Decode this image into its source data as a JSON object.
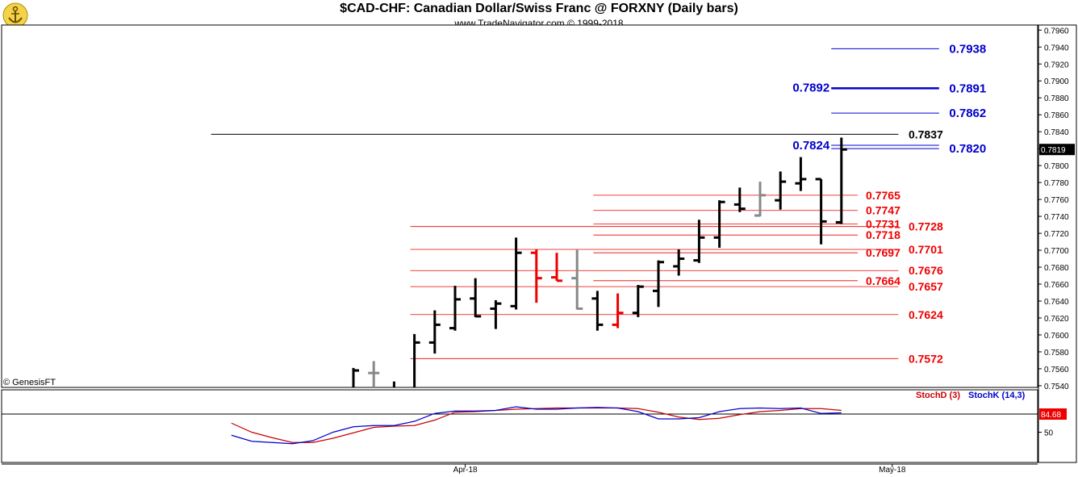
{
  "header": {
    "title": "$CAD-CHF:  Canadian Dollar/Swiss Franc @ FORXNY  (Daily bars)",
    "subtitle": "www.TradeNavigator.com © 1999-2018"
  },
  "credit": "© GenesisFT",
  "colors": {
    "bar_up": "#000000",
    "bar_down": "#ee0000",
    "bar_neutral": "#888888",
    "blue_level": "#0000cc",
    "red_level": "#ee0000",
    "stoch_d": "#cc0000",
    "stoch_k": "#0000cc"
  },
  "chart_data": [
    {
      "type": "bar",
      "title": "$CAD-CHF:  Canadian Dollar/Swiss Franc @ FORXNY  (Daily bars)",
      "ylim": [
        0.7538,
        0.7966
      ],
      "y_ticks": [
        "0.7540",
        "0.7560",
        "0.7580",
        "0.7600",
        "0.7620",
        "0.7640",
        "0.7660",
        "0.7680",
        "0.7700",
        "0.7720",
        "0.7740",
        "0.7760",
        "0.7780",
        "0.7800",
        "0.7820",
        "0.7840",
        "0.7860",
        "0.7880",
        "0.7900",
        "0.7920",
        "0.7940",
        "0.7960"
      ],
      "x_labels": [
        {
          "label": "Apr-18",
          "x": 5.5
        },
        {
          "label": "May-18",
          "x": 26.5
        }
      ],
      "x_range": [
        -7,
        42.5
      ],
      "last_price_label": "0.7819",
      "ohlc": [
        {
          "x": 0,
          "h": 0.7561,
          "l": 0.7538,
          "o": 0.7538,
          "c": 0.7558,
          "color": "black"
        },
        {
          "x": 1,
          "h": 0.7569,
          "l": 0.7538,
          "o": 0.7555,
          "c": 0.7555,
          "color": "gray"
        },
        {
          "x": 2,
          "h": 0.7545,
          "l": 0.7538,
          "o": 0.7538,
          "c": 0.7538,
          "color": "black"
        },
        {
          "x": 3,
          "h": 0.7601,
          "l": 0.7538,
          "o": 0.7538,
          "c": 0.7591,
          "color": "black"
        },
        {
          "x": 4,
          "h": 0.7629,
          "l": 0.7578,
          "o": 0.7591,
          "c": 0.7612,
          "color": "black"
        },
        {
          "x": 5,
          "h": 0.7658,
          "l": 0.7605,
          "o": 0.7608,
          "c": 0.7642,
          "color": "black"
        },
        {
          "x": 6,
          "h": 0.7667,
          "l": 0.7621,
          "o": 0.7643,
          "c": 0.7622,
          "color": "black"
        },
        {
          "x": 7,
          "h": 0.7641,
          "l": 0.7607,
          "o": 0.7631,
          "c": 0.7637,
          "color": "black"
        },
        {
          "x": 8,
          "h": 0.7715,
          "l": 0.763,
          "o": 0.7634,
          "c": 0.7697,
          "color": "black"
        },
        {
          "x": 9,
          "h": 0.7701,
          "l": 0.7638,
          "o": 0.7697,
          "c": 0.7667,
          "color": "red"
        },
        {
          "x": 10,
          "h": 0.7697,
          "l": 0.7664,
          "o": 0.7668,
          "c": 0.7664,
          "color": "red"
        },
        {
          "x": 11,
          "h": 0.7701,
          "l": 0.763,
          "o": 0.7667,
          "c": 0.7631,
          "color": "gray"
        },
        {
          "x": 12,
          "h": 0.7652,
          "l": 0.7605,
          "o": 0.7643,
          "c": 0.7612,
          "color": "black"
        },
        {
          "x": 13,
          "h": 0.7649,
          "l": 0.7608,
          "o": 0.7612,
          "c": 0.7626,
          "color": "red"
        },
        {
          "x": 14,
          "h": 0.7659,
          "l": 0.7621,
          "o": 0.7626,
          "c": 0.7657,
          "color": "black"
        },
        {
          "x": 15,
          "h": 0.7688,
          "l": 0.7633,
          "o": 0.7652,
          "c": 0.7686,
          "color": "black"
        },
        {
          "x": 16,
          "h": 0.7701,
          "l": 0.767,
          "o": 0.7681,
          "c": 0.769,
          "color": "black"
        },
        {
          "x": 17,
          "h": 0.7736,
          "l": 0.7685,
          "o": 0.7688,
          "c": 0.7715,
          "color": "black"
        },
        {
          "x": 18,
          "h": 0.7759,
          "l": 0.7703,
          "o": 0.7715,
          "c": 0.7757,
          "color": "black"
        },
        {
          "x": 19,
          "h": 0.7774,
          "l": 0.7745,
          "o": 0.7754,
          "c": 0.7749,
          "color": "black"
        },
        {
          "x": 20,
          "h": 0.7781,
          "l": 0.774,
          "o": 0.7741,
          "c": 0.7765,
          "color": "gray"
        },
        {
          "x": 21,
          "h": 0.7793,
          "l": 0.7748,
          "o": 0.7759,
          "c": 0.7781,
          "color": "black"
        },
        {
          "x": 22,
          "h": 0.781,
          "l": 0.777,
          "o": 0.7779,
          "c": 0.7784,
          "color": "black"
        },
        {
          "x": 23,
          "h": 0.7784,
          "l": 0.7707,
          "o": 0.7784,
          "c": 0.7734,
          "color": "black"
        },
        {
          "x": 24,
          "h": 0.7833,
          "l": 0.7731,
          "o": 0.7733,
          "c": 0.7819,
          "color": "black"
        }
      ],
      "levels": [
        {
          "value": 0.7938,
          "label": "0.7938",
          "color": "blue",
          "x_start": 23.5,
          "x_end": 28.8,
          "label_x": 29.3
        },
        {
          "value": 0.7891,
          "label": "0.7891",
          "color": "blue",
          "x_start": 23.5,
          "x_end": 28.8,
          "label_x": 29.3
        },
        {
          "value": 0.7892,
          "label": "0.7892",
          "color": "blue",
          "x_start": 23.5,
          "x_end": 28.8,
          "label_x": 21.6
        },
        {
          "value": 0.7862,
          "label": "0.7862",
          "color": "blue",
          "x_start": 23.5,
          "x_end": 28.8,
          "label_x": 29.3
        },
        {
          "value": 0.7837,
          "label": "0.7837",
          "color": "black",
          "x_start": -7,
          "x_end": 26.8,
          "label_x": 27.3
        },
        {
          "value": 0.7824,
          "label": "0.7824",
          "color": "blue",
          "x_start": 23.5,
          "x_end": 28.8,
          "label_x": 21.6
        },
        {
          "value": 0.782,
          "label": "0.7820",
          "color": "blue",
          "x_start": 23.5,
          "x_end": 28.8,
          "label_x": 29.3
        },
        {
          "value": 0.7765,
          "label": "0.7765",
          "color": "red",
          "x_start": 11.8,
          "x_end": 24.8,
          "label_x": 25.2
        },
        {
          "value": 0.7747,
          "label": "0.7747",
          "color": "red",
          "x_start": 11.8,
          "x_end": 24.8,
          "label_x": 25.2
        },
        {
          "value": 0.7731,
          "label": "0.7731",
          "color": "red",
          "x_start": 11.8,
          "x_end": 24.8,
          "label_x": 25.2
        },
        {
          "value": 0.7718,
          "label": "0.7718",
          "color": "red",
          "x_start": 11.8,
          "x_end": 24.8,
          "label_x": 25.2
        },
        {
          "value": 0.7697,
          "label": "0.7697",
          "color": "red",
          "x_start": 11.8,
          "x_end": 24.8,
          "label_x": 25.2
        },
        {
          "value": 0.7664,
          "label": "0.7664",
          "color": "red",
          "x_start": 11.8,
          "x_end": 24.8,
          "label_x": 25.2
        },
        {
          "value": 0.7728,
          "label": "0.7728",
          "color": "red",
          "x_start": 2.8,
          "x_end": 26.8,
          "label_x": 27.3
        },
        {
          "value": 0.7701,
          "label": "0.7701",
          "color": "red",
          "x_start": 2.8,
          "x_end": 26.8,
          "label_x": 27.3
        },
        {
          "value": 0.7676,
          "label": "0.7676",
          "color": "red",
          "x_start": 2.8,
          "x_end": 26.8,
          "label_x": 27.3
        },
        {
          "value": 0.7657,
          "label": "0.7657",
          "color": "red",
          "x_start": 2.8,
          "x_end": 26.8,
          "label_x": 27.3
        },
        {
          "value": 0.7624,
          "label": "0.7624",
          "color": "red",
          "x_start": 2.8,
          "x_end": 26.8,
          "label_x": 27.3
        },
        {
          "value": 0.7572,
          "label": "0.7572",
          "color": "red",
          "x_start": 2.8,
          "x_end": 26.8,
          "label_x": 27.3
        }
      ]
    },
    {
      "type": "line",
      "ylim": [
        0,
        120
      ],
      "y_ticks": [
        "50"
      ],
      "legend": [
        "StochD (3)",
        "StochK (14,3)"
      ],
      "last_value_label": "84.68",
      "reference_line": 80,
      "x": [
        -6,
        -5,
        -4,
        -3,
        -2,
        -1,
        0,
        1,
        2,
        3,
        4,
        5,
        6,
        7,
        8,
        9,
        10,
        11,
        12,
        13,
        14,
        15,
        16,
        17,
        18,
        19,
        20,
        21,
        22,
        23,
        24
      ],
      "series": [
        {
          "name": "StochD (3)",
          "color": "red",
          "values": [
            65,
            50,
            41,
            33,
            33,
            40,
            49,
            58,
            60,
            61,
            70,
            83,
            84,
            86,
            88,
            89,
            90,
            90,
            90,
            90,
            89,
            83,
            75,
            71,
            73,
            79,
            84,
            86,
            89,
            89,
            86
          ]
        },
        {
          "name": "StochK (14,3)",
          "color": "blue",
          "values": [
            45,
            35,
            33,
            31,
            36,
            50,
            59,
            61,
            61,
            68,
            81,
            85,
            85,
            86,
            92,
            88,
            88,
            90,
            91,
            90,
            84,
            72,
            72,
            74,
            84,
            89,
            90,
            89,
            90,
            81,
            82
          ]
        }
      ]
    }
  ]
}
